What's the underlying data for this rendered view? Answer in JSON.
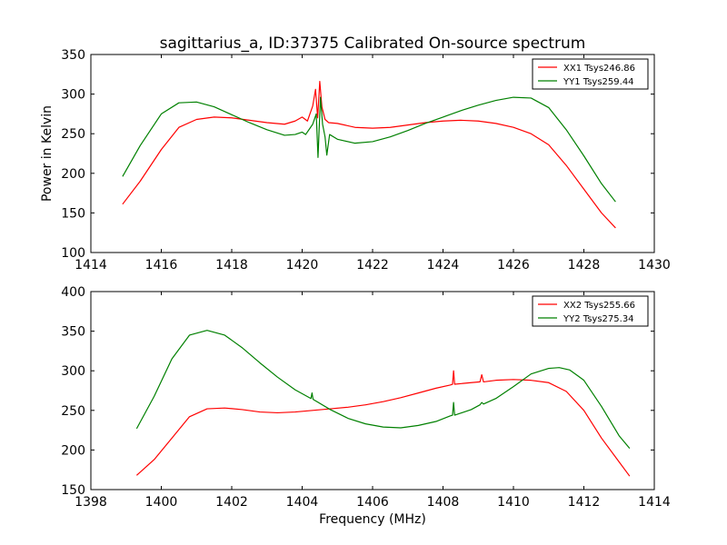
{
  "chart_data": [
    {
      "type": "line",
      "title": "sagittarius_a, ID:37375 Calibrated On-source spectrum",
      "xlabel": "",
      "ylabel": "Power in Kelvin",
      "xlim": [
        1414,
        1430
      ],
      "ylim": [
        100,
        350
      ],
      "xticks": [
        1414,
        1416,
        1418,
        1420,
        1422,
        1424,
        1426,
        1428,
        1430
      ],
      "yticks": [
        100,
        150,
        200,
        250,
        300,
        350
      ],
      "legend_position": "top-right",
      "series": [
        {
          "name": "XX1 Tsys246.86",
          "color": "#ff0000",
          "points": [
            [
              1414.9,
              161
            ],
            [
              1415.4,
              190
            ],
            [
              1416,
              230
            ],
            [
              1416.5,
              258
            ],
            [
              1417,
              268
            ],
            [
              1417.5,
              271
            ],
            [
              1418,
              270
            ],
            [
              1418.5,
              267
            ],
            [
              1419,
              264
            ],
            [
              1419.5,
              262
            ],
            [
              1419.8,
              266
            ],
            [
              1420.0,
              271
            ],
            [
              1420.15,
              266
            ],
            [
              1420.3,
              285
            ],
            [
              1420.38,
              306
            ],
            [
              1420.44,
              270
            ],
            [
              1420.5,
              316
            ],
            [
              1420.56,
              284
            ],
            [
              1420.65,
              268
            ],
            [
              1420.75,
              264
            ],
            [
              1421,
              263
            ],
            [
              1421.5,
              258
            ],
            [
              1422,
              257
            ],
            [
              1422.5,
              258
            ],
            [
              1423,
              261
            ],
            [
              1423.5,
              264
            ],
            [
              1424,
              266
            ],
            [
              1424.5,
              267
            ],
            [
              1425,
              266
            ],
            [
              1425.5,
              263
            ],
            [
              1426,
              258
            ],
            [
              1426.5,
              250
            ],
            [
              1427,
              236
            ],
            [
              1427.5,
              210
            ],
            [
              1428,
              180
            ],
            [
              1428.5,
              150
            ],
            [
              1428.9,
              131
            ]
          ]
        },
        {
          "name": "YY1 Tsys259.44",
          "color": "#008000",
          "points": [
            [
              1414.9,
              196
            ],
            [
              1415.4,
              235
            ],
            [
              1416,
              275
            ],
            [
              1416.5,
              289
            ],
            [
              1417,
              290
            ],
            [
              1417.5,
              284
            ],
            [
              1418,
              274
            ],
            [
              1418.5,
              264
            ],
            [
              1419,
              255
            ],
            [
              1419.5,
              248
            ],
            [
              1419.8,
              249
            ],
            [
              1420.0,
              252
            ],
            [
              1420.1,
              249
            ],
            [
              1420.3,
              262
            ],
            [
              1420.4,
              275
            ],
            [
              1420.45,
              220
            ],
            [
              1420.52,
              296
            ],
            [
              1420.58,
              262
            ],
            [
              1420.65,
              246
            ],
            [
              1420.7,
              223
            ],
            [
              1420.78,
              249
            ],
            [
              1421,
              243
            ],
            [
              1421.5,
              238
            ],
            [
              1422,
              240
            ],
            [
              1422.5,
              246
            ],
            [
              1423,
              254
            ],
            [
              1423.5,
              263
            ],
            [
              1424,
              271
            ],
            [
              1424.5,
              279
            ],
            [
              1425,
              286
            ],
            [
              1425.5,
              292
            ],
            [
              1426,
              296
            ],
            [
              1426.5,
              295
            ],
            [
              1427,
              283
            ],
            [
              1427.5,
              255
            ],
            [
              1428,
              222
            ],
            [
              1428.5,
              187
            ],
            [
              1428.9,
              164
            ]
          ]
        }
      ]
    },
    {
      "type": "line",
      "title": "",
      "xlabel": "Frequency (MHz)",
      "ylabel": "",
      "xlim": [
        1398,
        1414
      ],
      "ylim": [
        150,
        400
      ],
      "xticks": [
        1398,
        1400,
        1402,
        1404,
        1406,
        1408,
        1410,
        1412,
        1414
      ],
      "yticks": [
        150,
        200,
        250,
        300,
        350,
        400
      ],
      "legend_position": "top-right",
      "series": [
        {
          "name": "XX2 Tsys255.66",
          "color": "#ff0000",
          "points": [
            [
              1399.3,
              168
            ],
            [
              1399.8,
              188
            ],
            [
              1400.3,
              215
            ],
            [
              1400.8,
              242
            ],
            [
              1401.3,
              252
            ],
            [
              1401.8,
              253
            ],
            [
              1402.3,
              251
            ],
            [
              1402.8,
              248
            ],
            [
              1403.3,
              247
            ],
            [
              1403.8,
              248
            ],
            [
              1404.3,
              250
            ],
            [
              1404.8,
              252
            ],
            [
              1405.3,
              254
            ],
            [
              1405.8,
              257
            ],
            [
              1406.3,
              261
            ],
            [
              1406.8,
              266
            ],
            [
              1407.3,
              272
            ],
            [
              1407.8,
              278
            ],
            [
              1408.2,
              282
            ],
            [
              1408.27,
              283
            ],
            [
              1408.3,
              300
            ],
            [
              1408.33,
              283
            ],
            [
              1408.8,
              285
            ],
            [
              1409.05,
              286
            ],
            [
              1409.1,
              295
            ],
            [
              1409.15,
              286
            ],
            [
              1409.5,
              288
            ],
            [
              1410,
              289
            ],
            [
              1410.5,
              288
            ],
            [
              1411,
              285
            ],
            [
              1411.5,
              274
            ],
            [
              1412,
              250
            ],
            [
              1412.5,
              215
            ],
            [
              1413,
              185
            ],
            [
              1413.3,
              167
            ]
          ]
        },
        {
          "name": "YY2 Tsys275.34",
          "color": "#008000",
          "points": [
            [
              1399.3,
              227
            ],
            [
              1399.8,
              268
            ],
            [
              1400.3,
              315
            ],
            [
              1400.8,
              345
            ],
            [
              1401.3,
              351
            ],
            [
              1401.8,
              345
            ],
            [
              1402.3,
              329
            ],
            [
              1402.8,
              310
            ],
            [
              1403.3,
              292
            ],
            [
              1403.8,
              276
            ],
            [
              1404.25,
              265
            ],
            [
              1404.28,
              272
            ],
            [
              1404.31,
              264
            ],
            [
              1404.8,
              251
            ],
            [
              1405.3,
              240
            ],
            [
              1405.8,
              233
            ],
            [
              1406.3,
              229
            ],
            [
              1406.8,
              228
            ],
            [
              1407.3,
              231
            ],
            [
              1407.8,
              236
            ],
            [
              1408.2,
              243
            ],
            [
              1408.27,
              244
            ],
            [
              1408.3,
              260
            ],
            [
              1408.33,
              244
            ],
            [
              1408.8,
              251
            ],
            [
              1409.05,
              257
            ],
            [
              1409.1,
              260
            ],
            [
              1409.15,
              258
            ],
            [
              1409.5,
              265
            ],
            [
              1410,
              280
            ],
            [
              1410.5,
              296
            ],
            [
              1411,
              303
            ],
            [
              1411.3,
              304
            ],
            [
              1411.6,
              301
            ],
            [
              1412,
              288
            ],
            [
              1412.5,
              255
            ],
            [
              1413,
              218
            ],
            [
              1413.3,
              202
            ]
          ]
        }
      ]
    }
  ]
}
